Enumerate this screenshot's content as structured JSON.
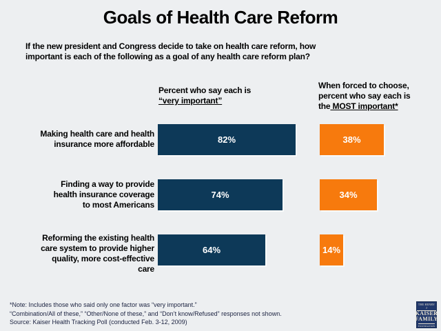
{
  "slide": {
    "title": "Goals of Health Care Reform",
    "question_lines": [
      "If the new president and Congress decide to take on health care reform, how",
      "important is each of the following as a goal of any health care reform plan?"
    ],
    "col1_header": {
      "line1": "Percent who say each is",
      "line2_underlined": "“very important”"
    },
    "col2_header": {
      "line1": "When forced to choose,",
      "line2": "percent who say each is",
      "line3_prefix": "the",
      "line3_underlined": " MOST important*"
    }
  },
  "rows": [
    {
      "label_lines": [
        "Making health care and health",
        "insurance more affordable"
      ],
      "very_important": 82,
      "very_important_label": "82%",
      "most_important": 38,
      "most_important_label": "38%"
    },
    {
      "label_lines": [
        "Finding a way to provide",
        "health insurance coverage",
        "to most Americans"
      ],
      "very_important": 74,
      "very_important_label": "74%",
      "most_important": 34,
      "most_important_label": "34%"
    },
    {
      "label_lines": [
        "Reforming the existing health",
        "care system to provide higher",
        "quality, more cost-effective",
        "care"
      ],
      "very_important": 64,
      "very_important_label": "64%",
      "most_important": 14,
      "most_important_label": "14%"
    }
  ],
  "footnotes": [
    "*Note: Includes those who said only one factor was “very important.”",
    "“Combination/All of these,” “Other/None of these,” and “Don’t know/Refused” responses not shown.",
    "Source: Kaiser Health Tracking Poll (conducted Feb. 3-12, 2009)"
  ],
  "logo": {
    "line1": "THE HENRY J",
    "line2": "KAISER",
    "line3": "FAMILY",
    "line4": "FOUNDATION"
  },
  "colors": {
    "background": "#edeff1",
    "very_important_bar": "#0d3958",
    "most_important_bar": "#f77a0d",
    "bar_text": "#ffffff",
    "footnote_text": "#1b2240",
    "logo_background": "#21386b"
  },
  "chart_data": {
    "type": "bar",
    "orientation": "horizontal",
    "title": "Goals of Health Care Reform",
    "subtitle": "If the new president and Congress decide to take on health care reform, how important is each of the following as a goal of any health care reform plan?",
    "categories": [
      "Making health care and health insurance more affordable",
      "Finding a way to provide health insurance coverage to most Americans",
      "Reforming the existing health care system to provide higher quality, more cost-effective care"
    ],
    "series": [
      {
        "name": "Percent who say each is “very important”",
        "values": [
          82,
          74,
          64
        ],
        "color": "#0d3958"
      },
      {
        "name": "When forced to choose, percent who say each is the MOST important*",
        "values": [
          38,
          34,
          14
        ],
        "color": "#f77a0d"
      }
    ],
    "value_format": "percent",
    "xlim": [
      0,
      100
    ],
    "grid": false,
    "legend_position": "column-headers",
    "data_labels": "inside-center"
  }
}
